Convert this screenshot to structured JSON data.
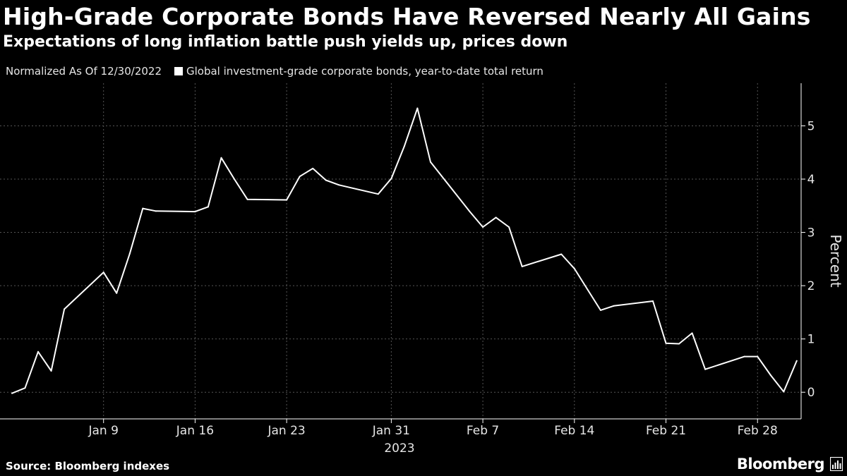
{
  "header": {
    "title": "High-Grade Corporate Bonds Have Reversed Nearly All Gains",
    "subtitle": "Expectations of long inflation battle push yields up, prices down"
  },
  "legend": {
    "note": "Normalized As Of 12/30/2022",
    "series_label": "Global investment-grade corporate bonds, year-to-date total return"
  },
  "footer": {
    "source": "Source: Bloomberg indexes",
    "brand": "Bloomberg"
  },
  "colors": {
    "background": "#000000",
    "line": "#ffffff",
    "grid": "#555555"
  },
  "chart_data": {
    "type": "line",
    "title": "High-Grade Corporate Bonds Have Reversed Nearly All Gains",
    "subtitle": "Expectations of long inflation battle push yields up, prices down",
    "xlabel": "2023",
    "ylabel": "Percent",
    "ylim": [
      -0.5,
      5.8
    ],
    "yticks": [
      0,
      1,
      2,
      3,
      4,
      5
    ],
    "grid": true,
    "y_axis_position": "right",
    "legend_placement": "top-left",
    "xticks": [
      {
        "date": "2023-01-09",
        "label": "Jan 9"
      },
      {
        "date": "2023-01-16",
        "label": "Jan 16"
      },
      {
        "date": "2023-01-23",
        "label": "Jan 23"
      },
      {
        "date": "2023-01-31",
        "label": "Jan 31"
      },
      {
        "date": "2023-02-07",
        "label": "Feb 7"
      },
      {
        "date": "2023-02-14",
        "label": "Feb 14"
      },
      {
        "date": "2023-02-21",
        "label": "Feb 21"
      },
      {
        "date": "2023-02-28",
        "label": "Feb 28"
      }
    ],
    "series": [
      {
        "name": "Global investment-grade corporate bonds, year-to-date total return",
        "x": [
          "2023-01-02",
          "2023-01-03",
          "2023-01-04",
          "2023-01-05",
          "2023-01-06",
          "2023-01-09",
          "2023-01-10",
          "2023-01-11",
          "2023-01-12",
          "2023-01-13",
          "2023-01-16",
          "2023-01-17",
          "2023-01-18",
          "2023-01-19",
          "2023-01-20",
          "2023-01-23",
          "2023-01-24",
          "2023-01-25",
          "2023-01-26",
          "2023-01-27",
          "2023-01-30",
          "2023-01-31",
          "2023-02-01",
          "2023-02-02",
          "2023-02-03",
          "2023-02-06",
          "2023-02-07",
          "2023-02-08",
          "2023-02-09",
          "2023-02-10",
          "2023-02-13",
          "2023-02-14",
          "2023-02-15",
          "2023-02-16",
          "2023-02-17",
          "2023-02-20",
          "2023-02-21",
          "2023-02-22",
          "2023-02-23",
          "2023-02-24",
          "2023-02-27",
          "2023-02-28",
          "2023-03-01",
          "2023-03-02",
          "2023-03-03"
        ],
        "values": [
          -0.02,
          0.08,
          0.76,
          0.4,
          1.56,
          2.25,
          1.86,
          2.6,
          3.45,
          3.4,
          3.39,
          3.48,
          4.4,
          4.0,
          3.62,
          3.61,
          4.05,
          4.2,
          3.98,
          3.89,
          3.72,
          4.01,
          4.62,
          5.33,
          4.32,
          3.39,
          3.1,
          3.28,
          3.1,
          2.36,
          2.59,
          2.32,
          1.93,
          1.54,
          1.62,
          1.71,
          0.92,
          0.91,
          1.11,
          0.43,
          0.67,
          0.67,
          0.32,
          0.01,
          0.59
        ]
      }
    ]
  }
}
